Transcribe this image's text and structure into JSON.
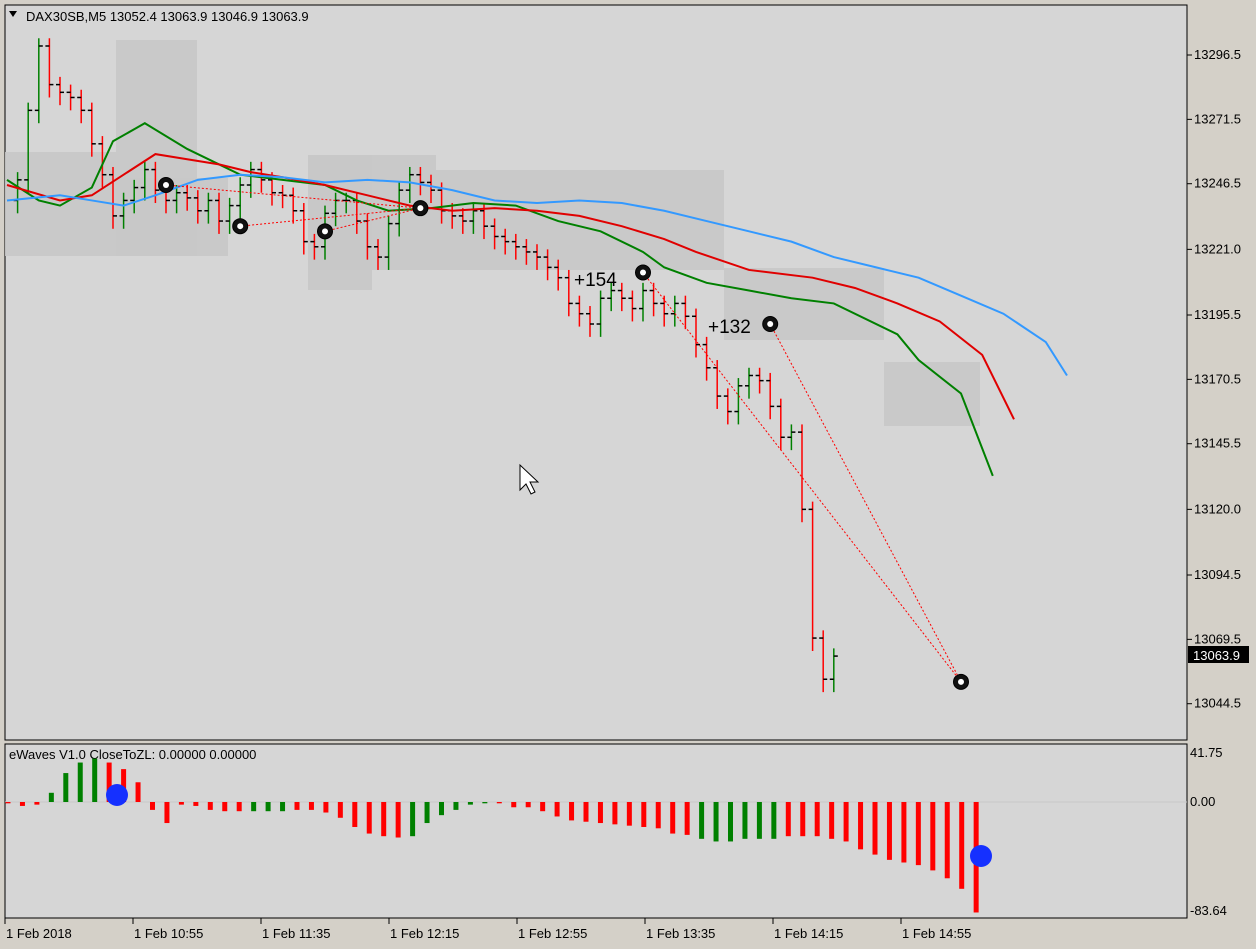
{
  "main_panel": {
    "header": "DAX30SB,M5  13052.4 13063.9 13046.9 13063.9",
    "price_ticks": [
      "13296.5",
      "13271.5",
      "13246.5",
      "13221.0",
      "13195.5",
      "13170.5",
      "13145.5",
      "13120.0",
      "13094.5",
      "13069.5",
      "13044.5"
    ],
    "current_price": "13063.9",
    "annotations": [
      "+154",
      "+132"
    ],
    "colors": {
      "bull": "#008000",
      "bear": "#ff0000",
      "ma_green": "#008000",
      "ma_red": "#e00000",
      "ma_blue": "#3399ff",
      "box": "#c8c8c8",
      "panel_bg": "#d6d6d6"
    }
  },
  "sub_panel": {
    "header": "eWaves V1.0 CloseToZL: 0.00000 0.00000",
    "ticks": [
      "41.75",
      "0.00",
      "-83.64"
    ]
  },
  "time_ticks": [
    "1 Feb 2018",
    "1 Feb 10:55",
    "1 Feb 11:35",
    "1 Feb 12:15",
    "1 Feb 12:55",
    "1 Feb 13:35",
    "1 Feb 14:15",
    "1 Feb 14:55"
  ],
  "chart_data": [
    {
      "type": "candlestick",
      "title": "DAX30SB,M5",
      "ohlc_last": {
        "open": 13052.4,
        "high": 13063.9,
        "low": 13046.9,
        "close": 13063.9
      },
      "ylim": [
        13030,
        13315
      ],
      "moving_averages": [
        {
          "color": "green",
          "points": [
            [
              0,
              13248
            ],
            [
              3,
              13240
            ],
            [
              5,
              13238
            ],
            [
              8,
              13245
            ],
            [
              10,
              13263
            ],
            [
              13,
              13270
            ],
            [
              17,
              13260
            ],
            [
              22,
              13250
            ],
            [
              26,
              13248
            ],
            [
              30,
              13246
            ],
            [
              33,
              13240
            ],
            [
              36,
              13236
            ],
            [
              40,
              13237
            ],
            [
              44,
              13239
            ],
            [
              48,
              13238
            ],
            [
              52,
              13232
            ],
            [
              56,
              13228
            ],
            [
              60,
              13220
            ],
            [
              62,
              13214
            ],
            [
              66,
              13208
            ],
            [
              70,
              13205
            ],
            [
              74,
              13202
            ],
            [
              78,
              13200
            ],
            [
              84,
              13188
            ],
            [
              86,
              13178
            ],
            [
              90,
              13165
            ],
            [
              93,
              13133
            ]
          ]
        },
        {
          "color": "red",
          "points": [
            [
              0,
              13246
            ],
            [
              5,
              13240
            ],
            [
              8,
              13242
            ],
            [
              11,
              13250
            ],
            [
              14,
              13258
            ],
            [
              17,
              13256
            ],
            [
              20,
              13254
            ],
            [
              23,
              13251
            ],
            [
              26,
              13249
            ],
            [
              30,
              13246
            ],
            [
              34,
              13242
            ],
            [
              38,
              13238
            ],
            [
              42,
              13236
            ],
            [
              46,
              13237
            ],
            [
              50,
              13236
            ],
            [
              54,
              13234
            ],
            [
              58,
              13230
            ],
            [
              62,
              13225
            ],
            [
              65,
              13220
            ],
            [
              70,
              13213
            ],
            [
              76,
              13210
            ],
            [
              80,
              13206
            ],
            [
              84,
              13200
            ],
            [
              88,
              13193
            ],
            [
              92,
              13180
            ],
            [
              95,
              13155
            ]
          ]
        },
        {
          "color": "blue",
          "points": [
            [
              0,
              13240
            ],
            [
              5,
              13242
            ],
            [
              8,
              13240
            ],
            [
              11,
              13238
            ],
            [
              14,
              13242
            ],
            [
              18,
              13248
            ],
            [
              22,
              13250
            ],
            [
              26,
              13249
            ],
            [
              30,
              13247
            ],
            [
              34,
              13248
            ],
            [
              38,
              13247
            ],
            [
              42,
              13244
            ],
            [
              46,
              13240
            ],
            [
              50,
              13239
            ],
            [
              54,
              13240
            ],
            [
              58,
              13239
            ],
            [
              62,
              13236
            ],
            [
              66,
              13232
            ],
            [
              70,
              13228
            ],
            [
              74,
              13224
            ],
            [
              78,
              13218
            ],
            [
              82,
              13214
            ],
            [
              86,
              13210
            ],
            [
              90,
              13203
            ],
            [
              94,
              13196
            ],
            [
              98,
              13185
            ],
            [
              100,
              13172
            ]
          ]
        }
      ]
    },
    {
      "type": "bar",
      "title": "eWaves V1.0 CloseToZL",
      "ylim": [
        -83.64,
        41.75
      ],
      "values": [
        -1,
        -3,
        -2,
        7,
        22,
        30,
        33,
        30,
        25,
        15,
        -6,
        -16,
        -2,
        -3,
        -6,
        -7,
        -7,
        -7,
        -7,
        -7,
        -6,
        -6,
        -8,
        -12,
        -19,
        -24,
        -26,
        -27,
        -26,
        -16,
        -10,
        -6,
        -2,
        -1,
        -1,
        -4,
        -4,
        -7,
        -11,
        -14,
        -15,
        -16,
        -17,
        -18,
        -19,
        -20,
        -24,
        -25,
        -28,
        -30,
        -30,
        -28,
        -28,
        -28,
        -26,
        -26,
        -26,
        -28,
        -30,
        -36,
        -40,
        -44,
        -46,
        -48,
        -52,
        -58,
        -66,
        -84
      ],
      "bull": [
        0,
        0,
        0,
        1,
        1,
        1,
        1,
        0,
        0,
        0,
        0,
        0,
        0,
        0,
        0,
        0,
        0,
        1,
        1,
        1,
        0,
        0,
        0,
        0,
        0,
        0,
        0,
        0,
        1,
        1,
        1,
        1,
        1,
        1,
        0,
        0,
        0,
        0,
        0,
        0,
        0,
        0,
        0,
        0,
        0,
        0,
        0,
        0,
        1,
        1,
        1,
        1,
        1,
        1,
        0,
        0,
        0,
        0,
        0,
        0,
        0,
        0,
        0,
        0,
        0,
        0,
        0,
        0
      ]
    }
  ]
}
